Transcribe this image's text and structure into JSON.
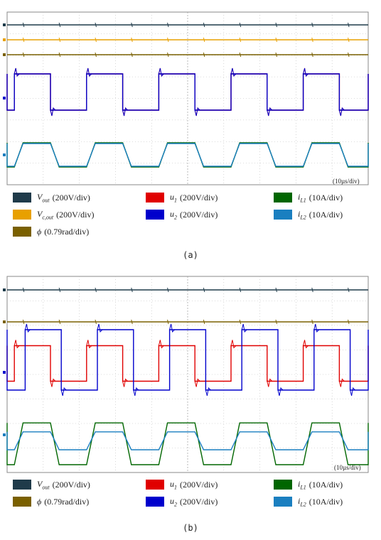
{
  "chart_data": [
    {
      "type": "line",
      "timebase": "(10µs/div)",
      "caption": "(a)",
      "series": [
        {
          "key": "vout",
          "symbol": "V",
          "sub": "out",
          "scale": "(200V/div)",
          "color": "#1f3b4a",
          "kind": "flat",
          "level": 0.8
        },
        {
          "key": "vcout",
          "symbol": "V",
          "sub": "c,out",
          "scale": "(200V/div)",
          "color": "#e8a000",
          "kind": "flat",
          "level": 0.55
        },
        {
          "key": "phi",
          "symbol": "ϕ",
          "sub": "",
          "scale": "(0.79rad/div)",
          "color": "#7a6000",
          "kind": "flat",
          "level": 0.75
        },
        {
          "key": "u1",
          "symbol": "u",
          "sub": "1",
          "scale": "(200V/div)",
          "color": "#e00000",
          "kind": "square",
          "high": 1.0,
          "low": -0.5,
          "phase": 0.0
        },
        {
          "key": "u2",
          "symbol": "u",
          "sub": "2",
          "scale": "(200V/div)",
          "color": "#0000cc",
          "kind": "square",
          "high": 1.0,
          "low": -0.5,
          "phase": 0.0
        },
        {
          "key": "iL1",
          "symbol": "i",
          "sub": "L1",
          "scale": "(10A/div)",
          "color": "#006600",
          "kind": "trap",
          "high": 0.85,
          "low": -0.85,
          "phase": 0.0
        },
        {
          "key": "iL2",
          "symbol": "i",
          "sub": "L2",
          "scale": "(10A/div)",
          "color": "#1a7fc0",
          "kind": "trap",
          "high": 0.8,
          "low": -0.8,
          "phase": 0.0
        }
      ],
      "legend_rows": [
        [
          "vout",
          "u1",
          "iL1"
        ],
        [
          "vcout",
          "u2",
          "iL2"
        ],
        [
          "phi"
        ]
      ]
    },
    {
      "type": "line",
      "timebase": "(10µs/div)",
      "caption": "(b)",
      "series": [
        {
          "key": "vout",
          "symbol": "V",
          "sub": "out",
          "scale": "(200V/div)",
          "color": "#1f3b4a",
          "kind": "flat",
          "level": 0.8
        },
        {
          "key": "phi",
          "symbol": "ϕ",
          "sub": "",
          "scale": "(0.79rad/div)",
          "color": "#7a6000",
          "kind": "flat",
          "level": 0.9
        },
        {
          "key": "u1",
          "symbol": "u",
          "sub": "1",
          "scale": "(200V/div)",
          "color": "#e00000",
          "kind": "square",
          "high": 0.75,
          "low": -0.25,
          "phase": 0.0
        },
        {
          "key": "u2",
          "symbol": "u",
          "sub": "2",
          "scale": "(200V/div)",
          "color": "#0000cc",
          "kind": "square",
          "high": 1.2,
          "low": -0.5,
          "phase": 0.15
        },
        {
          "key": "iL1",
          "symbol": "i",
          "sub": "L1",
          "scale": "(10A/div)",
          "color": "#006600",
          "kind": "trap",
          "high": 0.6,
          "low": -1.5,
          "phase": 0.0
        },
        {
          "key": "iL2",
          "symbol": "i",
          "sub": "L2",
          "scale": "(10A/div)",
          "color": "#1a7fc0",
          "kind": "trap",
          "high": 0.15,
          "low": -0.75,
          "phase": 0.0
        }
      ],
      "legend_rows": [
        [
          "vout",
          "u1",
          "iL1"
        ],
        [
          "phi",
          "u2",
          "iL2"
        ]
      ]
    }
  ]
}
